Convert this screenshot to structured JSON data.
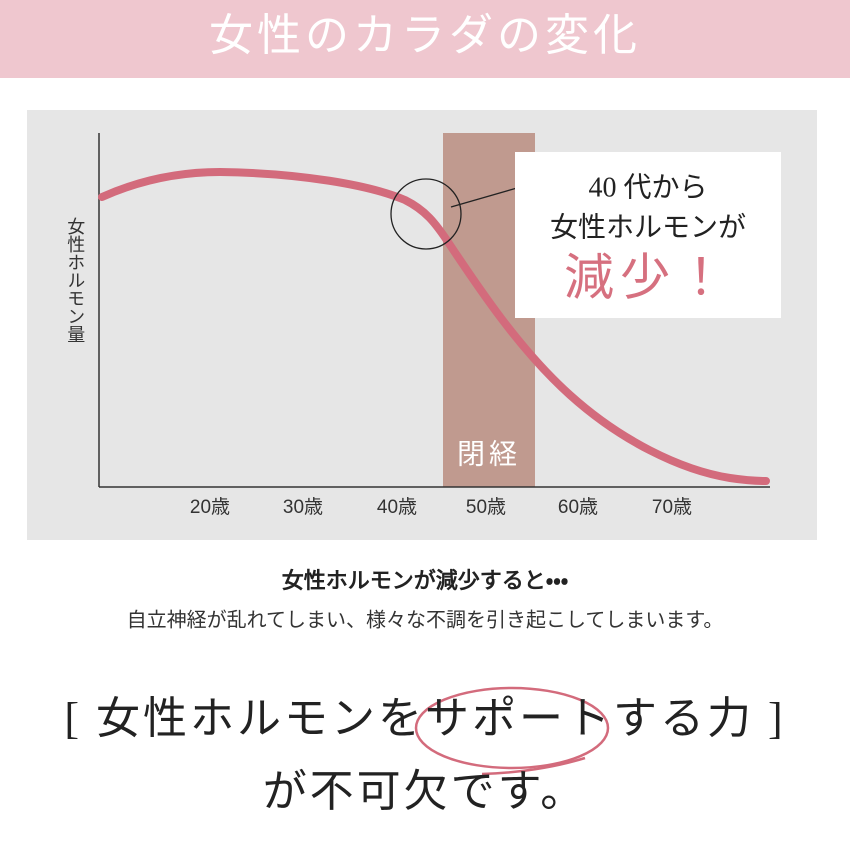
{
  "header": {
    "title": "女性のカラダの変化"
  },
  "chart": {
    "y_label": "女性ホルモン量",
    "x_labels": [
      "20歳",
      "30歳",
      "40歳",
      "50歳",
      "60歳",
      "70歳"
    ],
    "band_label": "閉経",
    "callout": {
      "line1": "40 代から",
      "line2": "女性ホルモンが",
      "line3": "減少！"
    }
  },
  "body": {
    "lead": "女性ホルモンが減少すると・・・",
    "detail": "自立神経が乱れてしまい、様々な不調を引き起こしてしまいます。"
  },
  "message": {
    "line1": "[ 女性ホルモンをサポートする力 ]",
    "line2": "が不可欠です。"
  }
}
